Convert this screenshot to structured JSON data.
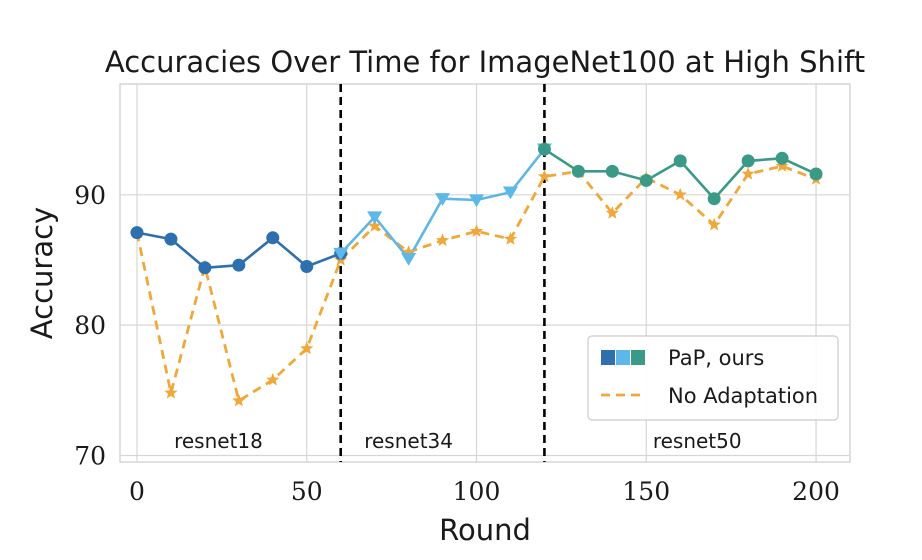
{
  "chart_data": {
    "type": "line",
    "title": "Accuracies Over Time for ImageNet100 at High Shift",
    "xlabel": "Round",
    "ylabel": "Accuracy",
    "xlim": [
      -5,
      210
    ],
    "ylim": [
      69.5,
      98.5
    ],
    "xticks": [
      0,
      50,
      100,
      150,
      200
    ],
    "yticks": [
      70,
      80,
      90
    ],
    "grid": true,
    "legend_position": "lower-right",
    "legend": [
      {
        "label": "PaP, ours",
        "colors": [
          "#2e6fad",
          "#5db7e8",
          "#3a9a87"
        ],
        "style": "squares"
      },
      {
        "label": "No Adaptation",
        "color": "#f0a83a",
        "style": "dashed"
      }
    ],
    "boundaries": [
      60,
      120
    ],
    "regions": [
      {
        "label": "resnet18",
        "x": 24
      },
      {
        "label": "resnet34",
        "x": 80
      },
      {
        "label": "resnet50",
        "x": 165
      }
    ],
    "series": [
      {
        "name": "PaP, ours",
        "segment": "resnet18",
        "color": "#2e6fad",
        "marker": "circle",
        "style": "solid",
        "x": [
          0,
          10,
          20,
          30,
          40,
          50,
          60
        ],
        "y": [
          87.1,
          86.6,
          84.4,
          84.6,
          86.7,
          84.5,
          85.5
        ]
      },
      {
        "name": "PaP, ours",
        "segment": "resnet34",
        "color": "#5db7e8",
        "marker": "triangle-down",
        "style": "solid",
        "x": [
          60,
          70,
          80,
          90,
          100,
          110,
          120
        ],
        "y": [
          85.5,
          88.3,
          85.1,
          89.7,
          89.6,
          90.2,
          93.5
        ]
      },
      {
        "name": "PaP, ours",
        "segment": "resnet50",
        "color": "#3a9a87",
        "marker": "circle",
        "style": "solid",
        "x": [
          120,
          130,
          140,
          150,
          160,
          170,
          180,
          190,
          200
        ],
        "y": [
          93.5,
          91.8,
          91.8,
          91.1,
          92.6,
          89.7,
          92.6,
          92.8,
          91.6
        ]
      },
      {
        "name": "No Adaptation",
        "color": "#f0a83a",
        "marker": "star",
        "style": "dashed",
        "x": [
          0,
          10,
          20,
          30,
          40,
          50,
          60,
          70,
          80,
          90,
          100,
          110,
          120,
          130,
          140,
          150,
          160,
          170,
          180,
          190,
          200
        ],
        "y": [
          87.1,
          74.8,
          84.5,
          74.2,
          75.8,
          78.2,
          85.0,
          87.6,
          85.6,
          86.5,
          87.2,
          86.6,
          91.4,
          91.8,
          88.6,
          91.3,
          90.0,
          87.7,
          91.6,
          92.2,
          91.2
        ]
      }
    ]
  }
}
